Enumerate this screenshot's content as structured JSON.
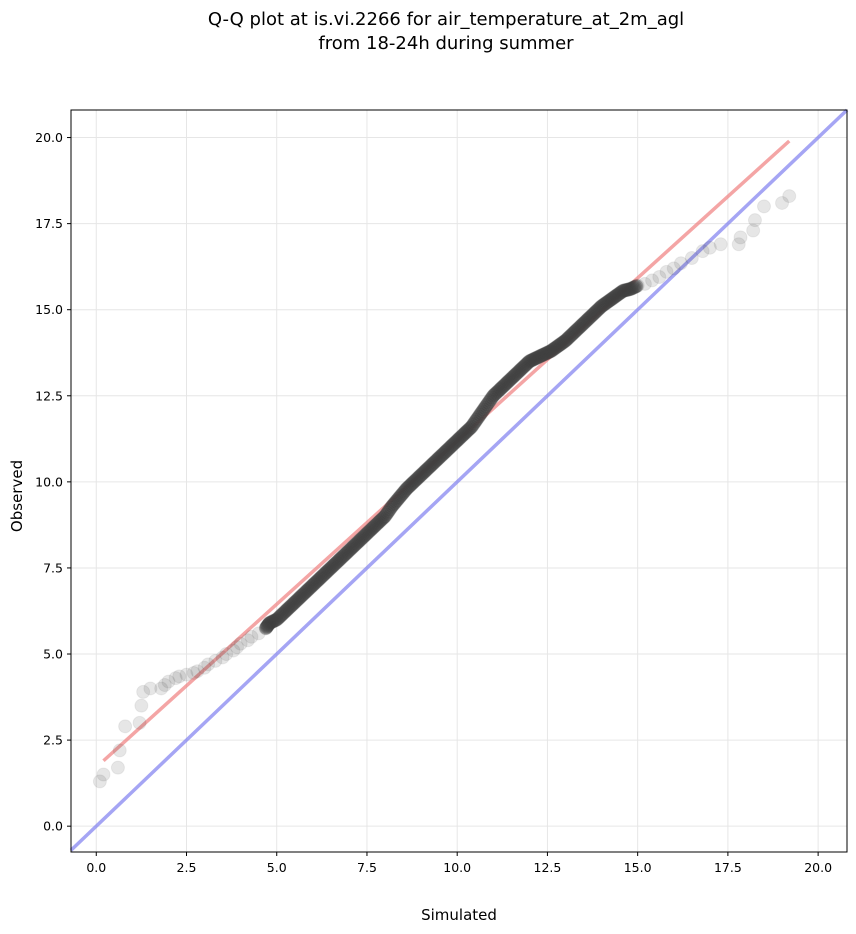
{
  "chart_data": {
    "type": "scatter",
    "title_lines": [
      "Q-Q plot at is.vi.2266 for air_temperature_at_2m_agl",
      "from 18-24h during summer"
    ],
    "xlabel": "Simulated",
    "ylabel": "Observed",
    "xlim": [
      -0.7,
      20.8
    ],
    "ylim": [
      -0.75,
      20.8
    ],
    "xticks": [
      0.0,
      2.5,
      5.0,
      7.5,
      10.0,
      12.5,
      15.0,
      17.5,
      20.0
    ],
    "yticks": [
      0.0,
      2.5,
      5.0,
      7.5,
      10.0,
      12.5,
      15.0,
      17.5,
      20.0
    ],
    "xtick_labels": [
      "0.0",
      "2.5",
      "5.0",
      "7.5",
      "10.0",
      "12.5",
      "15.0",
      "17.5",
      "20.0"
    ],
    "ytick_labels": [
      "0.0",
      "2.5",
      "5.0",
      "7.5",
      "10.0",
      "12.5",
      "15.0",
      "17.5",
      "20.0"
    ],
    "grid": true,
    "quantile_points": {
      "x": [
        0.1,
        0.2,
        0.6,
        0.65,
        0.8,
        1.2,
        1.25,
        1.3,
        1.5,
        1.8,
        1.9,
        2.0,
        2.2,
        2.3,
        2.5,
        2.7,
        2.8,
        3.0,
        3.1,
        3.3,
        3.5,
        3.6,
        3.8,
        3.9,
        4.0,
        4.2,
        4.3,
        4.5,
        4.7,
        4.8,
        5.0,
        5.2,
        5.4,
        5.6,
        5.8,
        6.0,
        6.2,
        6.4,
        6.6,
        6.8,
        7.0,
        7.2,
        7.4,
        7.6,
        7.8,
        8.0,
        8.2,
        8.4,
        8.6,
        8.8,
        9.0,
        9.2,
        9.4,
        9.6,
        9.8,
        10.0,
        10.2,
        10.4,
        10.6,
        10.8,
        11.0,
        11.2,
        11.4,
        11.6,
        11.8,
        12.0,
        12.2,
        12.4,
        12.6,
        12.8,
        13.0,
        13.2,
        13.4,
        13.6,
        13.8,
        14.0,
        14.2,
        14.4,
        14.6,
        14.8,
        15.0,
        15.2,
        15.4,
        15.6,
        15.8,
        16.0,
        16.2,
        16.5,
        16.8,
        17.0,
        17.3,
        17.8,
        17.85,
        18.2,
        18.25,
        18.5,
        19.0,
        19.2
      ],
      "y": [
        1.3,
        1.5,
        1.7,
        2.2,
        2.9,
        3.0,
        3.5,
        3.9,
        4.0,
        4.0,
        4.1,
        4.2,
        4.3,
        4.35,
        4.4,
        4.45,
        4.5,
        4.6,
        4.7,
        4.8,
        4.9,
        5.0,
        5.1,
        5.2,
        5.3,
        5.4,
        5.5,
        5.6,
        5.75,
        5.9,
        6.0,
        6.2,
        6.4,
        6.6,
        6.8,
        7.0,
        7.2,
        7.4,
        7.6,
        7.8,
        8.0,
        8.2,
        8.4,
        8.6,
        8.8,
        9.0,
        9.3,
        9.55,
        9.8,
        10.0,
        10.2,
        10.4,
        10.6,
        10.8,
        11.0,
        11.2,
        11.4,
        11.6,
        11.9,
        12.2,
        12.5,
        12.7,
        12.9,
        13.1,
        13.3,
        13.5,
        13.6,
        13.7,
        13.8,
        13.95,
        14.1,
        14.3,
        14.5,
        14.7,
        14.9,
        15.1,
        15.25,
        15.4,
        15.55,
        15.6,
        15.7,
        15.75,
        15.85,
        15.95,
        16.1,
        16.2,
        16.35,
        16.5,
        16.7,
        16.8,
        16.9,
        16.9,
        17.1,
        17.3,
        17.6,
        18.0,
        18.1,
        18.3
      ]
    },
    "reference_lines": [
      {
        "role": "fit",
        "color": "#f08080",
        "x": [
          0.2,
          19.2
        ],
        "y": [
          1.9,
          19.9
        ]
      },
      {
        "role": "identity",
        "color": "#8080f0",
        "x": [
          -0.7,
          20.8
        ],
        "y": [
          -0.7,
          20.8
        ]
      }
    ],
    "point_color": "#404040"
  }
}
